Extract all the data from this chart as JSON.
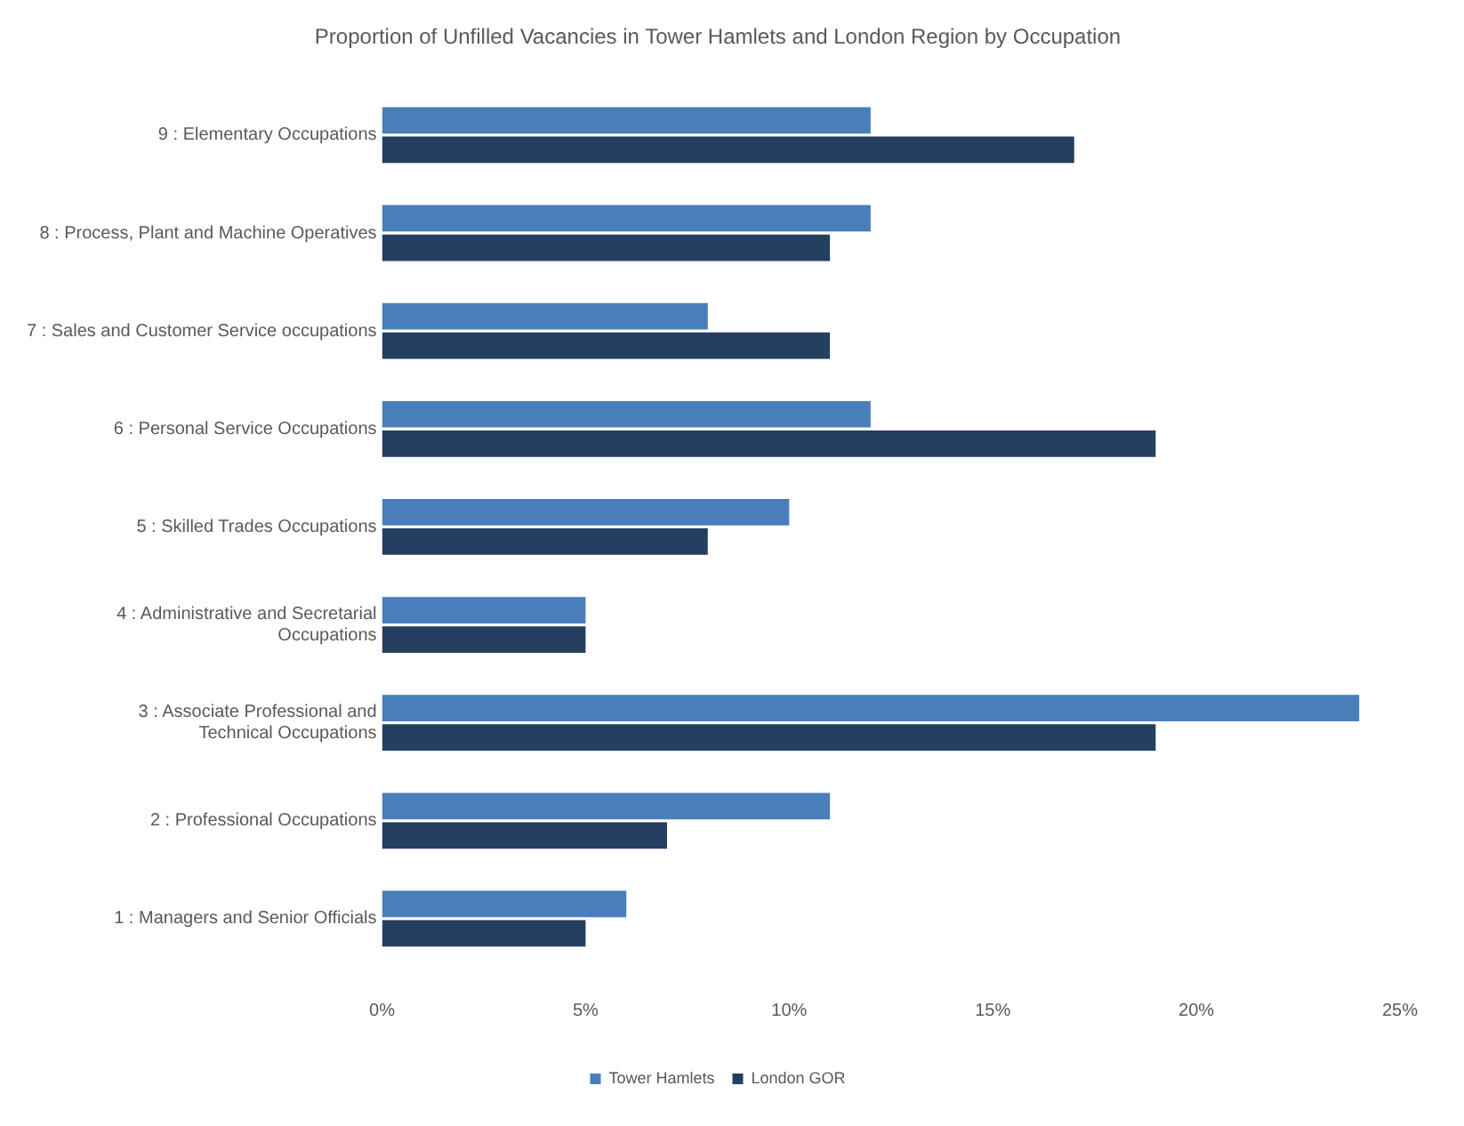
{
  "chart_data": {
    "type": "bar",
    "orientation": "horizontal",
    "title": "Proportion of Unfilled Vacancies in Tower Hamlets and London Region by Occupation",
    "categories": [
      "9 : Elementary Occupations",
      "8 : Process, Plant and Machine Operatives",
      "7 : Sales and Customer Service occupations",
      "6 : Personal Service Occupations",
      "5 : Skilled Trades Occupations",
      "4 : Administrative and Secretarial Occupations",
      "3 : Associate Professional and Technical Occupations",
      "2 : Professional Occupations",
      "1 : Managers and Senior Officials"
    ],
    "series": [
      {
        "name": "Tower Hamlets",
        "color": "#4a7ebb",
        "values": [
          12,
          12,
          8,
          12,
          10,
          5,
          24,
          11,
          6
        ]
      },
      {
        "name": "London GOR",
        "color": "#243f60",
        "values": [
          17,
          11,
          11,
          19,
          8,
          5,
          19,
          7,
          5
        ]
      }
    ],
    "xlim": [
      0,
      25
    ],
    "xticks": [
      {
        "value": 0,
        "label": "0%"
      },
      {
        "value": 5,
        "label": "5%"
      },
      {
        "value": 10,
        "label": "10%"
      },
      {
        "value": 15,
        "label": "15%"
      },
      {
        "value": 20,
        "label": "20%"
      },
      {
        "value": 25,
        "label": "25%"
      }
    ],
    "grid": false,
    "legend": "bottom"
  }
}
